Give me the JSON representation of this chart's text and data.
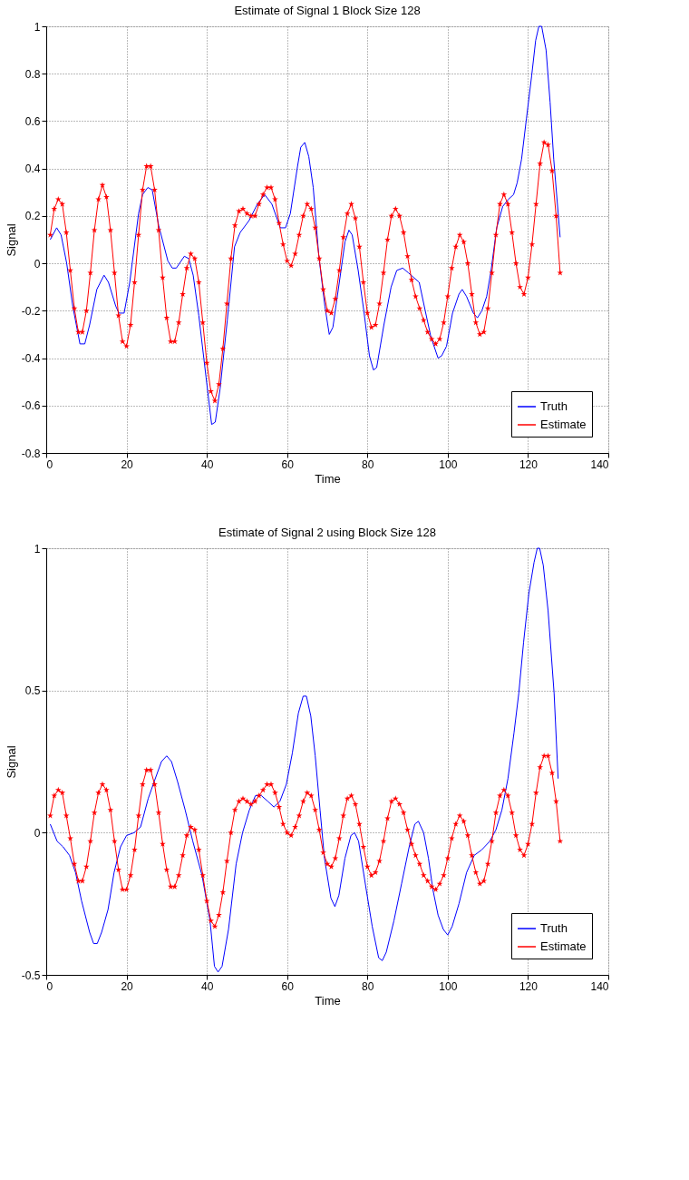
{
  "chart_data": [
    {
      "type": "line",
      "title": "Estimate of Signal 1 Block Size 128",
      "xlabel": "Time",
      "ylabel": "Signal",
      "xlim": [
        0,
        140
      ],
      "xticks": [
        0,
        20,
        40,
        60,
        80,
        100,
        120,
        140
      ],
      "ylim": [
        -0.8,
        1
      ],
      "yticks": [
        -0.8,
        -0.6,
        -0.4,
        -0.2,
        0,
        0.2,
        0.4,
        0.6,
        0.8,
        1
      ],
      "grid": true,
      "legend": "bottom right",
      "series": [
        {
          "name": "Truth",
          "color": "#0000ff",
          "x": [
            1,
            2.6,
            3.7,
            5.1,
            6.6,
            8.4,
            9.6,
            10.8,
            12.6,
            14.4,
            15.5,
            17.3,
            18.1,
            19.4,
            20.8,
            23,
            24,
            25.3,
            26.4,
            28,
            30.3,
            31.4,
            32.4,
            34.4,
            35.5,
            36.6,
            38,
            39.8,
            41.2,
            42.1,
            43.3,
            45.1,
            46.9,
            48.3,
            50.5,
            52.6,
            54.4,
            56.2,
            58.3,
            59.6,
            60.8,
            62.6,
            63.4,
            64.4,
            65.4,
            66.5,
            67.9,
            69.4,
            70.5,
            71.4,
            73,
            74.4,
            75.4,
            76.2,
            77.7,
            79.1,
            80.5,
            81.5,
            82.3,
            84.1,
            85.9,
            87.3,
            88.8,
            90.2,
            92.9,
            94.4,
            95.8,
            97.6,
            98.5,
            99.7,
            101.2,
            102.8,
            103.6,
            104.7,
            106.4,
            107.4,
            108.5,
            109.7,
            110.8,
            112.2,
            113.7,
            115.1,
            116.4,
            117.3,
            118.4,
            119.6,
            120.9,
            121.9,
            122.7,
            123.4,
            124.5,
            125.5,
            126.4,
            128
          ],
          "values": [
            0.1,
            0.15,
            0.12,
            0.0,
            -0.18,
            -0.34,
            -0.34,
            -0.26,
            -0.11,
            -0.05,
            -0.08,
            -0.18,
            -0.21,
            -0.21,
            -0.08,
            0.21,
            0.29,
            0.32,
            0.31,
            0.16,
            0.01,
            -0.02,
            -0.02,
            0.03,
            0.02,
            -0.05,
            -0.22,
            -0.48,
            -0.68,
            -0.67,
            -0.53,
            -0.24,
            0.07,
            0.13,
            0.18,
            0.25,
            0.29,
            0.25,
            0.15,
            0.15,
            0.21,
            0.41,
            0.49,
            0.51,
            0.45,
            0.32,
            0.03,
            -0.18,
            -0.3,
            -0.27,
            -0.08,
            0.09,
            0.14,
            0.12,
            -0.03,
            -0.2,
            -0.39,
            -0.45,
            -0.44,
            -0.26,
            -0.1,
            -0.03,
            -0.02,
            -0.04,
            -0.08,
            -0.2,
            -0.31,
            -0.4,
            -0.39,
            -0.35,
            -0.21,
            -0.13,
            -0.11,
            -0.14,
            -0.21,
            -0.23,
            -0.2,
            -0.14,
            -0.03,
            0.15,
            0.24,
            0.27,
            0.29,
            0.34,
            0.44,
            0.61,
            0.79,
            0.94,
            1.0,
            1.0,
            0.9,
            0.68,
            0.44,
            0.11
          ]
        },
        {
          "name": "Estimate",
          "color": "#ff0000",
          "marker": "star",
          "x": [
            1,
            2,
            3,
            4,
            5,
            6,
            7,
            8,
            9,
            10,
            11,
            12,
            13,
            14,
            15,
            16,
            17,
            18,
            19,
            20,
            21,
            22,
            23,
            24,
            25,
            26,
            27,
            28,
            29,
            30,
            31,
            32,
            33,
            34,
            35,
            36,
            37,
            38,
            39,
            40,
            41,
            42,
            43,
            44,
            45,
            46,
            47,
            48,
            49,
            50,
            51,
            52,
            53,
            54,
            55,
            56,
            57,
            58,
            59,
            60,
            61,
            62,
            63,
            64,
            65,
            66,
            67,
            68,
            69,
            70,
            71,
            72,
            73,
            74,
            75,
            76,
            77,
            78,
            79,
            80,
            81,
            82,
            83,
            84,
            85,
            86,
            87,
            88,
            89,
            90,
            91,
            92,
            93,
            94,
            95,
            96,
            97,
            98,
            99,
            100,
            101,
            102,
            103,
            104,
            105,
            106,
            107,
            108,
            109,
            110,
            111,
            112,
            113,
            114,
            115,
            116,
            117,
            118,
            119,
            120,
            121,
            122,
            123,
            124,
            125,
            126,
            127,
            128
          ],
          "values": [
            0.12,
            0.23,
            0.27,
            0.25,
            0.13,
            -0.03,
            -0.19,
            -0.29,
            -0.29,
            -0.2,
            -0.04,
            0.14,
            0.27,
            0.33,
            0.28,
            0.14,
            -0.04,
            -0.22,
            -0.33,
            -0.35,
            -0.26,
            -0.08,
            0.12,
            0.31,
            0.41,
            0.41,
            0.31,
            0.14,
            -0.06,
            -0.23,
            -0.33,
            -0.33,
            -0.25,
            -0.13,
            -0.02,
            0.04,
            0.02,
            -0.08,
            -0.25,
            -0.42,
            -0.54,
            -0.58,
            -0.51,
            -0.36,
            -0.17,
            0.02,
            0.16,
            0.22,
            0.23,
            0.21,
            0.2,
            0.2,
            0.25,
            0.29,
            0.32,
            0.32,
            0.27,
            0.17,
            0.08,
            0.01,
            -0.01,
            0.04,
            0.12,
            0.2,
            0.25,
            0.23,
            0.15,
            0.02,
            -0.11,
            -0.2,
            -0.21,
            -0.15,
            -0.03,
            0.11,
            0.21,
            0.25,
            0.19,
            0.07,
            -0.08,
            -0.21,
            -0.27,
            -0.26,
            -0.17,
            -0.04,
            0.1,
            0.2,
            0.23,
            0.2,
            0.13,
            0.03,
            -0.07,
            -0.14,
            -0.19,
            -0.24,
            -0.29,
            -0.32,
            -0.34,
            -0.32,
            -0.25,
            -0.14,
            -0.02,
            0.07,
            0.12,
            0.09,
            0.0,
            -0.13,
            -0.25,
            -0.3,
            -0.29,
            -0.19,
            -0.04,
            0.12,
            0.25,
            0.29,
            0.25,
            0.13,
            0.0,
            -0.1,
            -0.13,
            -0.06,
            0.08,
            0.25,
            0.42,
            0.51,
            0.5,
            0.39,
            0.2,
            -0.04
          ]
        }
      ]
    },
    {
      "type": "line",
      "title": "Estimate of Signal 2 using Block Size 128",
      "xlabel": "Time",
      "ylabel": "Signal",
      "xlim": [
        0,
        140
      ],
      "xticks": [
        0,
        20,
        40,
        60,
        80,
        100,
        120,
        140
      ],
      "ylim": [
        -0.5,
        1
      ],
      "yticks": [
        -0.5,
        0,
        0.5,
        1
      ],
      "grid": true,
      "legend": "bottom right",
      "series": [
        {
          "name": "Truth",
          "color": "#0000ff",
          "x": [
            1,
            2.7,
            4.2,
            5.8,
            7.3,
            8.8,
            10.8,
            11.8,
            12.7,
            13.8,
            15.4,
            16.9,
            18.5,
            20,
            21.9,
            23.5,
            25.4,
            26.9,
            28.7,
            30,
            31.2,
            32.7,
            34.6,
            36.5,
            38.8,
            40.8,
            41.9,
            42.8,
            43.8,
            45.4,
            47.3,
            48.9,
            50.6,
            52.1,
            53.6,
            55.2,
            56.7,
            58.2,
            59.8,
            61.3,
            62.8,
            64,
            64.8,
            65.9,
            67,
            68.2,
            69.3,
            70.9,
            71.9,
            72.9,
            74.4,
            75.9,
            76.8,
            77.8,
            79.7,
            81.2,
            82.8,
            83.7,
            84.7,
            86.6,
            88.5,
            90.4,
            91.8,
            92.7,
            94,
            95.2,
            96.3,
            97.6,
            98.9,
            100,
            101.1,
            102.8,
            104.7,
            106.6,
            108.5,
            110.5,
            112,
            113.5,
            115,
            116.5,
            117.7,
            118.9,
            120.2,
            121.5,
            122.3,
            122.9,
            123.8,
            125,
            126.5,
            127.5
          ],
          "values": [
            0.03,
            -0.03,
            -0.05,
            -0.08,
            -0.14,
            -0.24,
            -0.35,
            -0.39,
            -0.39,
            -0.35,
            -0.27,
            -0.14,
            -0.05,
            -0.01,
            0.0,
            0.02,
            0.12,
            0.18,
            0.25,
            0.27,
            0.25,
            0.18,
            0.08,
            -0.03,
            -0.15,
            -0.31,
            -0.47,
            -0.49,
            -0.47,
            -0.34,
            -0.11,
            0.0,
            0.08,
            0.13,
            0.13,
            0.11,
            0.09,
            0.11,
            0.17,
            0.28,
            0.42,
            0.48,
            0.48,
            0.41,
            0.27,
            0.08,
            -0.09,
            -0.23,
            -0.26,
            -0.22,
            -0.09,
            -0.01,
            0.0,
            -0.03,
            -0.2,
            -0.33,
            -0.44,
            -0.45,
            -0.42,
            -0.31,
            -0.18,
            -0.05,
            0.03,
            0.04,
            0.0,
            -0.09,
            -0.2,
            -0.29,
            -0.34,
            -0.36,
            -0.33,
            -0.25,
            -0.14,
            -0.08,
            -0.06,
            -0.03,
            0.01,
            0.08,
            0.19,
            0.35,
            0.49,
            0.67,
            0.84,
            0.95,
            1.0,
            1.0,
            0.94,
            0.78,
            0.49,
            0.19
          ]
        },
        {
          "name": "Estimate",
          "color": "#ff0000",
          "marker": "star",
          "x": [
            1,
            2,
            3,
            4,
            5,
            6,
            7,
            8,
            9,
            10,
            11,
            12,
            13,
            14,
            15,
            16,
            17,
            18,
            19,
            20,
            21,
            22,
            23,
            24,
            25,
            26,
            27,
            28,
            29,
            30,
            31,
            32,
            33,
            34,
            35,
            36,
            37,
            38,
            39,
            40,
            41,
            42,
            43,
            44,
            45,
            46,
            47,
            48,
            49,
            50,
            51,
            52,
            53,
            54,
            55,
            56,
            57,
            58,
            59,
            60,
            61,
            62,
            63,
            64,
            65,
            66,
            67,
            68,
            69,
            70,
            71,
            72,
            73,
            74,
            75,
            76,
            77,
            78,
            79,
            80,
            81,
            82,
            83,
            84,
            85,
            86,
            87,
            88,
            89,
            90,
            91,
            92,
            93,
            94,
            95,
            96,
            97,
            98,
            99,
            100,
            101,
            102,
            103,
            104,
            105,
            106,
            107,
            108,
            109,
            110,
            111,
            112,
            113,
            114,
            115,
            116,
            117,
            118,
            119,
            120,
            121,
            122,
            123,
            124,
            125,
            126,
            127,
            128
          ],
          "values": [
            0.06,
            0.13,
            0.15,
            0.14,
            0.06,
            -0.02,
            -0.11,
            -0.17,
            -0.17,
            -0.12,
            -0.03,
            0.07,
            0.14,
            0.17,
            0.15,
            0.08,
            -0.03,
            -0.13,
            -0.2,
            -0.2,
            -0.15,
            -0.06,
            0.06,
            0.17,
            0.22,
            0.22,
            0.17,
            0.07,
            -0.04,
            -0.13,
            -0.19,
            -0.19,
            -0.15,
            -0.08,
            -0.01,
            0.02,
            0.01,
            -0.06,
            -0.15,
            -0.24,
            -0.31,
            -0.33,
            -0.29,
            -0.21,
            -0.1,
            0.0,
            0.08,
            0.11,
            0.12,
            0.11,
            0.1,
            0.11,
            0.13,
            0.15,
            0.17,
            0.17,
            0.14,
            0.09,
            0.03,
            0.0,
            -0.01,
            0.02,
            0.06,
            0.11,
            0.14,
            0.13,
            0.08,
            0.01,
            -0.07,
            -0.11,
            -0.12,
            -0.09,
            -0.02,
            0.06,
            0.12,
            0.13,
            0.1,
            0.03,
            -0.05,
            -0.12,
            -0.15,
            -0.14,
            -0.1,
            -0.03,
            0.05,
            0.11,
            0.12,
            0.1,
            0.07,
            0.01,
            -0.04,
            -0.08,
            -0.11,
            -0.15,
            -0.17,
            -0.19,
            -0.2,
            -0.18,
            -0.15,
            -0.09,
            -0.02,
            0.03,
            0.06,
            0.04,
            -0.01,
            -0.08,
            -0.14,
            -0.18,
            -0.17,
            -0.11,
            -0.03,
            0.07,
            0.13,
            0.15,
            0.13,
            0.07,
            -0.01,
            -0.06,
            -0.08,
            -0.04,
            0.03,
            0.14,
            0.23,
            0.27,
            0.27,
            0.21,
            0.11,
            -0.03
          ]
        }
      ]
    }
  ]
}
